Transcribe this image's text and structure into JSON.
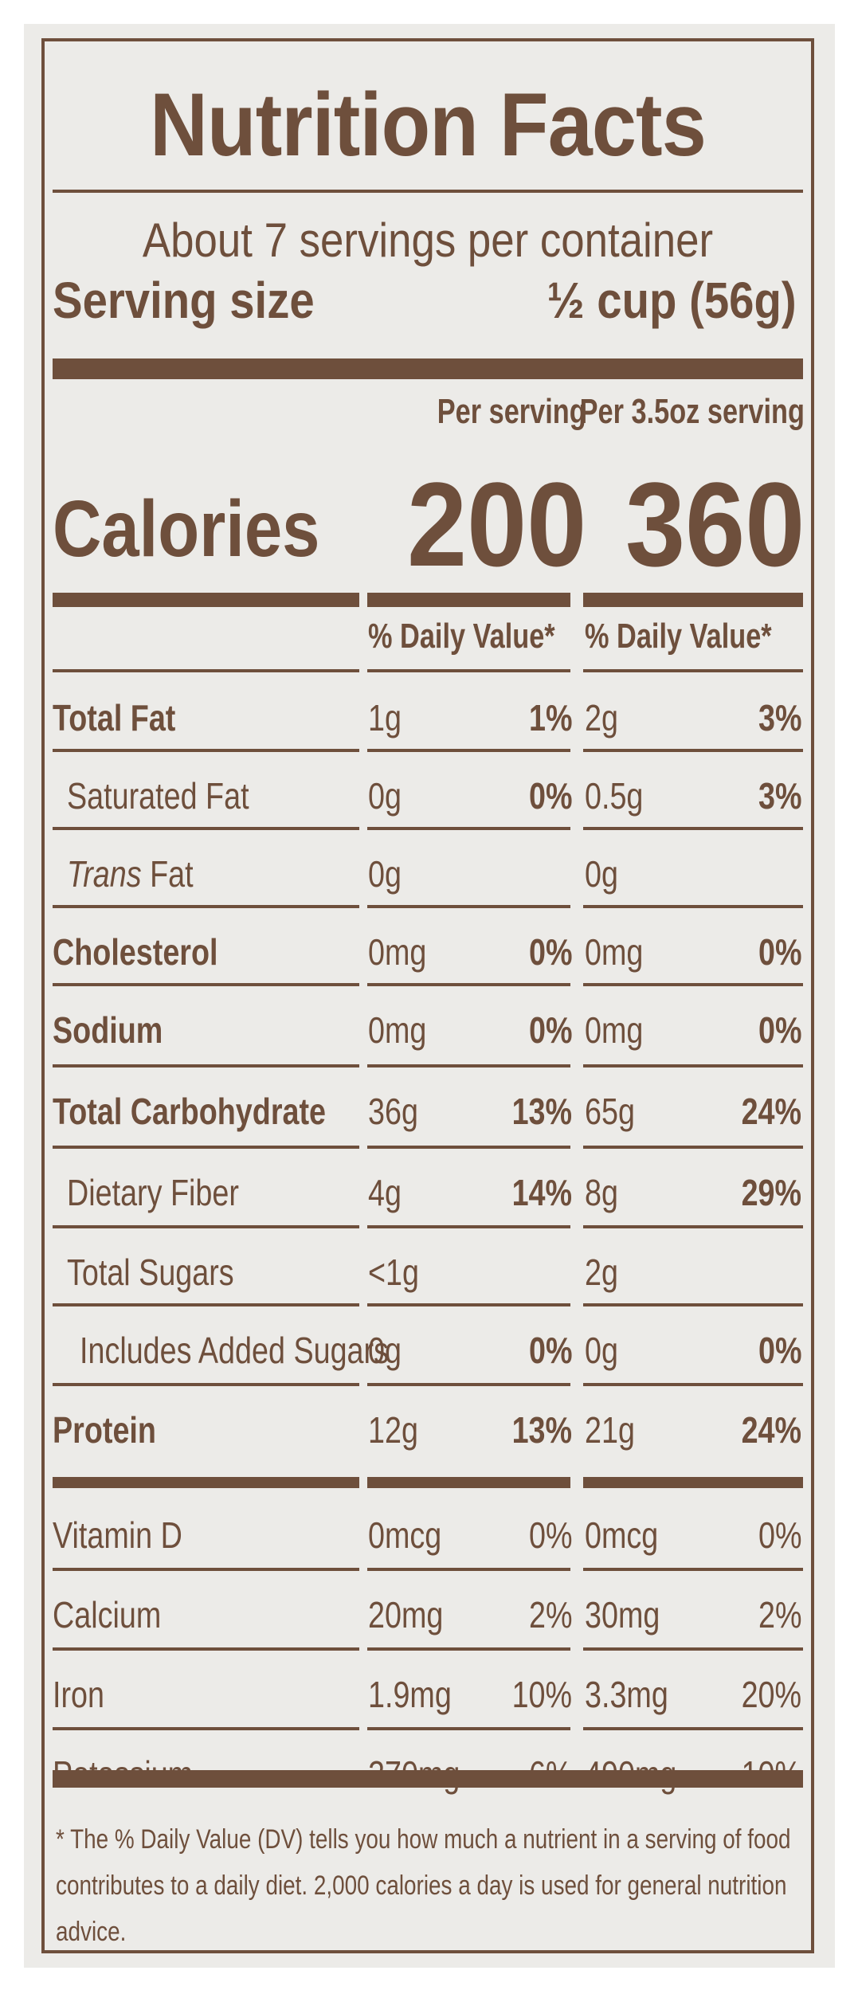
{
  "title": "Nutrition Facts",
  "servings_per_container": "About 7 servings per container",
  "serving_size": {
    "label": "Serving size",
    "value": "½ cup (56g)"
  },
  "columns": {
    "per_serving": "Per serving",
    "per_alt": "Per 3.5oz serving"
  },
  "calories": {
    "label": "Calories",
    "per_serving": "200",
    "per_alt": "360"
  },
  "daily_value_header": "% Daily Value*",
  "nutrients": [
    {
      "name": "Total Fat",
      "bold": true,
      "italic_prefix": "",
      "indent": 0,
      "amt1": "1g",
      "dv1": "1%",
      "amt2": "2g",
      "dv2": "3%",
      "dv_bold": true
    },
    {
      "name": "Saturated Fat",
      "bold": false,
      "italic_prefix": "",
      "indent": 1,
      "amt1": "0g",
      "dv1": "0%",
      "amt2": "0.5g",
      "dv2": "3%",
      "dv_bold": true
    },
    {
      "name": "Fat",
      "bold": false,
      "italic_prefix": "Trans",
      "indent": 1,
      "amt1": "0g",
      "dv1": "",
      "amt2": "0g",
      "dv2": "",
      "dv_bold": true
    },
    {
      "name": "Cholesterol",
      "bold": true,
      "italic_prefix": "",
      "indent": 0,
      "amt1": "0mg",
      "dv1": "0%",
      "amt2": "0mg",
      "dv2": "0%",
      "dv_bold": true
    },
    {
      "name": "Sodium",
      "bold": true,
      "italic_prefix": "",
      "indent": 0,
      "amt1": "0mg",
      "dv1": "0%",
      "amt2": "0mg",
      "dv2": "0%",
      "dv_bold": true
    },
    {
      "name": "Total Carbohydrate",
      "bold": true,
      "italic_prefix": "",
      "indent": 0,
      "amt1": "36g",
      "dv1": "13%",
      "amt2": "65g",
      "dv2": "24%",
      "dv_bold": true
    },
    {
      "name": "Dietary Fiber",
      "bold": false,
      "italic_prefix": "",
      "indent": 1,
      "amt1": "4g",
      "dv1": "14%",
      "amt2": "8g",
      "dv2": "29%",
      "dv_bold": true
    },
    {
      "name": "Total Sugars",
      "bold": false,
      "italic_prefix": "",
      "indent": 1,
      "amt1": "<1g",
      "dv1": "",
      "amt2": "2g",
      "dv2": "",
      "dv_bold": true
    },
    {
      "name": "Includes Added Sugars",
      "bold": false,
      "italic_prefix": "",
      "indent": 2,
      "amt1": "0g",
      "dv1": "0%",
      "amt2": "0g",
      "dv2": "0%",
      "dv_bold": true
    },
    {
      "name": "Protein",
      "bold": true,
      "italic_prefix": "",
      "indent": 0,
      "amt1": "12g",
      "dv1": "13%",
      "amt2": "21g",
      "dv2": "24%",
      "dv_bold": true
    },
    {
      "name": "Vitamin D",
      "bold": false,
      "italic_prefix": "",
      "indent": 0,
      "amt1": "0mcg",
      "dv1": "0%",
      "amt2": "0mcg",
      "dv2": "0%",
      "dv_bold": false
    },
    {
      "name": "Calcium",
      "bold": false,
      "italic_prefix": "",
      "indent": 0,
      "amt1": "20mg",
      "dv1": "2%",
      "amt2": "30mg",
      "dv2": "2%",
      "dv_bold": false
    },
    {
      "name": "Iron",
      "bold": false,
      "italic_prefix": "",
      "indent": 0,
      "amt1": "1.9mg",
      "dv1": "10%",
      "amt2": "3.3mg",
      "dv2": "20%",
      "dv_bold": false
    },
    {
      "name": "Potassium",
      "bold": false,
      "italic_prefix": "",
      "indent": 0,
      "amt1": "270mg",
      "dv1": "6%",
      "amt2": "490mg",
      "dv2": "10%",
      "dv_bold": false
    }
  ],
  "footnote": "* The % Daily Value (DV) tells you how much a nutrient in a serving of food contributes to a daily diet. 2,000 calories a day is used for general nutrition advice.",
  "colors": {
    "ink": "#6e4f3c",
    "paper": "#ecebe8"
  }
}
